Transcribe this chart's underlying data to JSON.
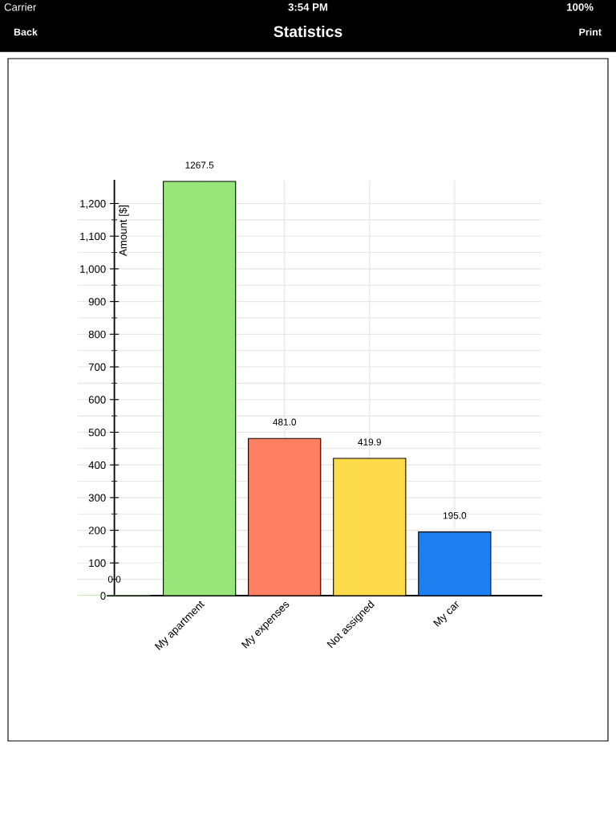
{
  "chart_data": {
    "type": "bar",
    "title": "Statistics",
    "ylabel": "Amount [$]",
    "annotations": [
      "Carrier",
      "3:54 PM",
      "100%",
      "Back",
      "Print"
    ],
    "categories": [
      null,
      "My apartment",
      "My expenses",
      "Not assigned",
      "My car"
    ],
    "values": [
      0,
      1267.5,
      481.0,
      419.9,
      195.0
    ],
    "value_labels": [
      "0.0",
      "1267.5",
      "481.0",
      "419.9",
      "195.0"
    ],
    "colors": [
      "#98e67a",
      "#98e67a",
      "#fe7f62",
      "#fedb4b",
      "#1e7ff0"
    ],
    "ylim": [
      0,
      1270
    ],
    "yticks": [
      0,
      100,
      200,
      300,
      400,
      500,
      600,
      700,
      800,
      900,
      {
        "value": 1000,
        "label": "1,000"
      },
      {
        "value": 1100,
        "label": "1,100"
      },
      {
        "value": 1200,
        "label": "1,200"
      }
    ],
    "grid": true
  }
}
